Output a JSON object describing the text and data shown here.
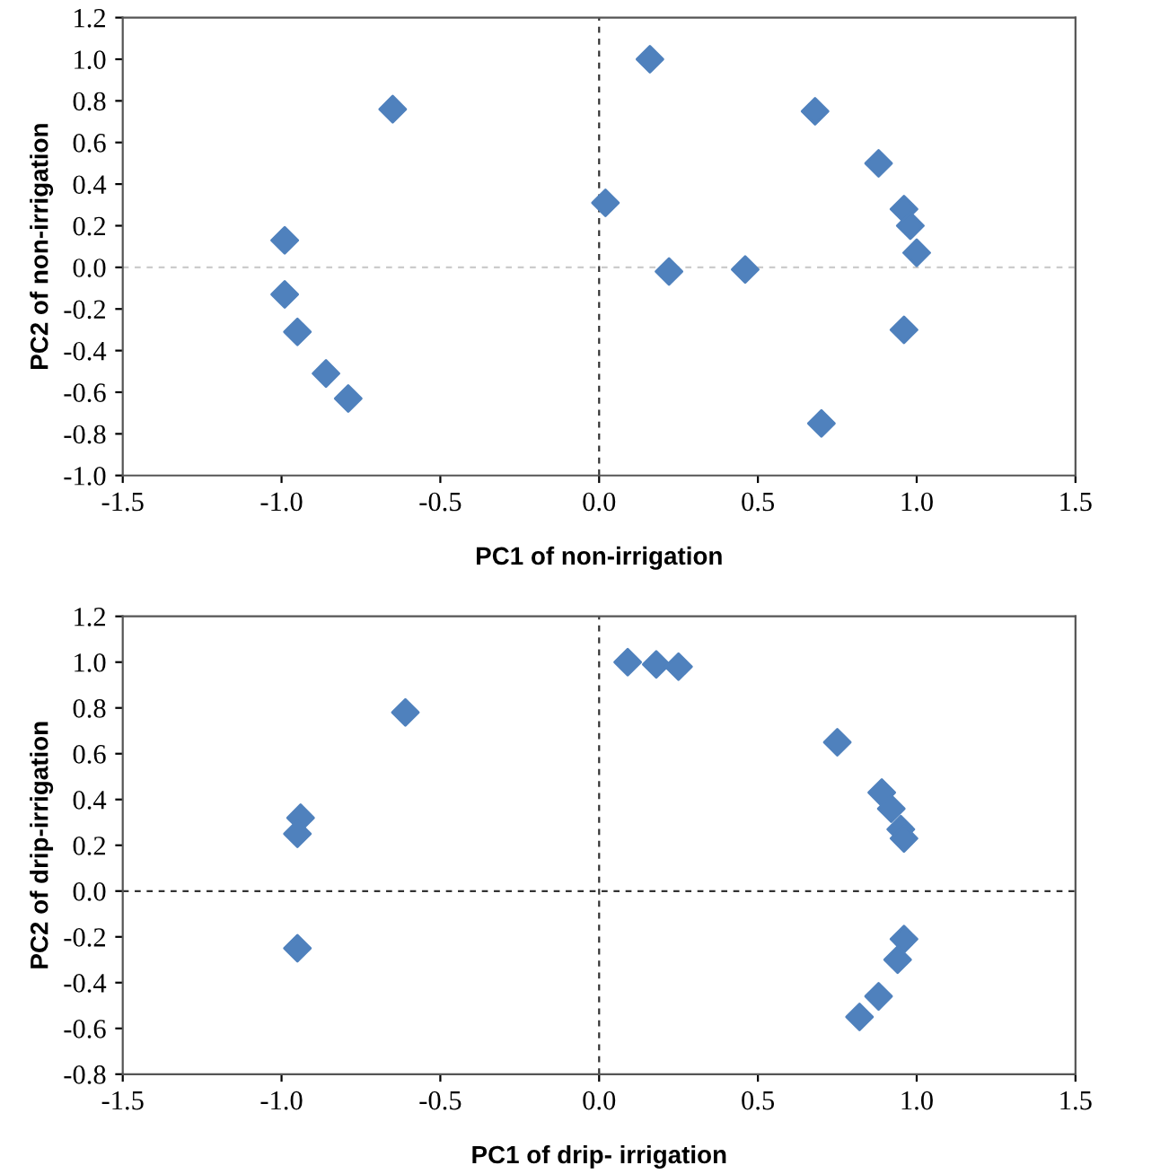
{
  "chart_data": [
    {
      "type": "scatter",
      "xlabel": "PC1 of non-irrigation",
      "ylabel": "PC2 of non-irrigation",
      "marker": "diamond",
      "x": [
        -0.65,
        -0.99,
        -0.99,
        -0.95,
        -0.86,
        -0.79,
        0.16,
        0.02,
        0.22,
        0.46,
        0.68,
        0.88,
        0.96,
        0.98,
        1.0,
        0.96,
        0.7
      ],
      "series": [
        {
          "color": "#4f81bd",
          "values": [
            0.76,
            0.13,
            -0.13,
            -0.31,
            -0.51,
            -0.63,
            1.0,
            0.31,
            -0.02,
            -0.01,
            0.75,
            0.5,
            0.28,
            0.2,
            0.07,
            -0.3,
            -0.75
          ]
        }
      ],
      "xlim": [
        -1.5,
        1.5
      ],
      "xticks": [
        {
          "value": -1.5,
          "label": "-1.5"
        },
        {
          "value": -1.0,
          "label": "-1.0"
        },
        {
          "value": -0.5,
          "label": "-0.5"
        },
        {
          "value": 0.0,
          "label": "0.0"
        },
        {
          "value": 0.5,
          "label": "0.5"
        },
        {
          "value": 1.0,
          "label": "1.0"
        },
        {
          "value": 1.5,
          "label": "1.5"
        }
      ],
      "ylim": [
        -1.0,
        1.2
      ],
      "yticks": [
        {
          "value": -1.0,
          "label": "-1.0"
        },
        {
          "value": -0.8,
          "label": "-0.8"
        },
        {
          "value": -0.6,
          "label": "-0.6"
        },
        {
          "value": -0.4,
          "label": "-0.4"
        },
        {
          "value": -0.2,
          "label": "-0.2"
        },
        {
          "value": 0.0,
          "label": "0.0"
        },
        {
          "value": 0.2,
          "label": "0.2"
        },
        {
          "value": 0.4,
          "label": "0.4"
        },
        {
          "value": 0.6,
          "label": "0.6"
        },
        {
          "value": 0.8,
          "label": "0.8"
        },
        {
          "value": 1.0,
          "label": "1.0"
        },
        {
          "value": 1.2,
          "label": "1.2"
        }
      ],
      "ref_lines": [
        {
          "axis": "x",
          "value": 0,
          "color": "#333333",
          "line_style": "dashed"
        },
        {
          "axis": "y",
          "value": 0,
          "color": "#cccccc",
          "line_style": "dashed"
        }
      ]
    },
    {
      "type": "scatter",
      "xlabel": "PC1 of drip- irrigation",
      "ylabel": "PC2 of drip-irrigation",
      "marker": "diamond",
      "x": [
        -0.61,
        -0.94,
        -0.95,
        -0.95,
        0.09,
        0.18,
        0.25,
        0.75,
        0.89,
        0.92,
        0.95,
        0.96,
        0.96,
        0.94,
        0.88,
        0.82
      ],
      "series": [
        {
          "color": "#4f81bd",
          "values": [
            0.78,
            0.32,
            0.25,
            -0.25,
            1.0,
            0.99,
            0.98,
            0.65,
            0.43,
            0.36,
            0.27,
            0.23,
            -0.21,
            -0.3,
            -0.46,
            -0.55
          ]
        }
      ],
      "xlim": [
        -1.5,
        1.5
      ],
      "xticks": [
        {
          "value": -1.5,
          "label": "-1.5"
        },
        {
          "value": -1.0,
          "label": "-1.0"
        },
        {
          "value": -0.5,
          "label": "-0.5"
        },
        {
          "value": 0.0,
          "label": "0.0"
        },
        {
          "value": 0.5,
          "label": "0.5"
        },
        {
          "value": 1.0,
          "label": "1.0"
        },
        {
          "value": 1.5,
          "label": "1.5"
        }
      ],
      "ylim": [
        -0.8,
        1.2
      ],
      "yticks": [
        {
          "value": -0.8,
          "label": "-0.8"
        },
        {
          "value": -0.6,
          "label": "-0.6"
        },
        {
          "value": -0.4,
          "label": "-0.4"
        },
        {
          "value": -0.2,
          "label": "-0.2"
        },
        {
          "value": 0.0,
          "label": "0.0"
        },
        {
          "value": 0.2,
          "label": "0.2"
        },
        {
          "value": 0.4,
          "label": "0.4"
        },
        {
          "value": 0.6,
          "label": "0.6"
        },
        {
          "value": 0.8,
          "label": "0.8"
        },
        {
          "value": 1.0,
          "label": "1.0"
        },
        {
          "value": 1.2,
          "label": "1.2"
        }
      ],
      "ref_lines": [
        {
          "axis": "x",
          "value": 0,
          "color": "#333333",
          "line_style": "dashed"
        },
        {
          "axis": "y",
          "value": 0,
          "color": "#333333",
          "line_style": "dashed"
        }
      ]
    }
  ]
}
